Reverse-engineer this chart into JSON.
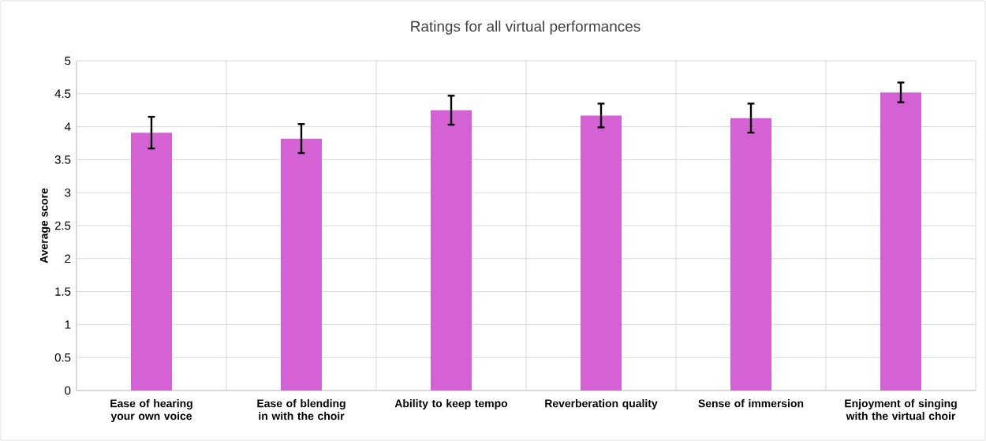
{
  "chart_data": {
    "type": "bar",
    "title": "Ratings for all virtual performances",
    "ylabel": "Average score",
    "categories": [
      "Ease of hearing your own voice",
      "Ease of blending in with the choir",
      "Ability to keep tempo",
      "Reverberation quality",
      "Sense of immersion",
      "Enjoyment of singing with the virtual choir"
    ],
    "values": [
      3.91,
      3.82,
      4.25,
      4.17,
      4.13,
      4.52
    ],
    "errors": [
      0.24,
      0.22,
      0.22,
      0.18,
      0.22,
      0.15
    ],
    "color": "#d462d4",
    "ylim": [
      0,
      5
    ],
    "yticks": [
      0,
      0.5,
      1,
      1.5,
      2,
      2.5,
      3,
      3.5,
      4,
      4.5,
      5
    ],
    "grid": true
  }
}
